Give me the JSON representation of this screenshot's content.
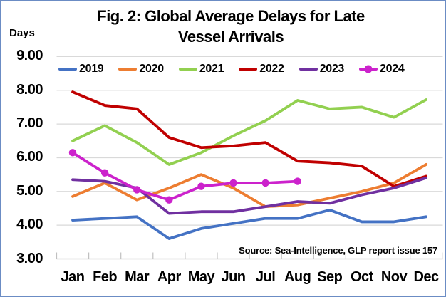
{
  "frame": {
    "border_color": "#6b8cc4",
    "background": "#ffffff"
  },
  "header": {
    "title_line1": "Fig. 2: Global Average Delays for Late",
    "title_line2": "Vessel Arrivals",
    "y_axis_unit_label": "Days"
  },
  "source_note": "Source: Sea-Intelligence, GLP report issue 157",
  "chart_data": {
    "type": "line",
    "title": "Fig. 2: Global Average Delays for Late Vessel Arrivals",
    "xlabel": "",
    "ylabel": "Days",
    "ylim": [
      3,
      9
    ],
    "y_tick_labels": [
      "9.00",
      "8.00",
      "7.00",
      "6.00",
      "5.00",
      "4.00",
      "3.00"
    ],
    "grid": "horizontal",
    "grid_color": "#d9d9d9",
    "axis_color": "#c0c0c0",
    "legend_position": "top",
    "categories": [
      "Jan",
      "Feb",
      "Mar",
      "Apr",
      "May",
      "Jun",
      "Jul",
      "Aug",
      "Sep",
      "Oct",
      "Nov",
      "Dec"
    ],
    "series": [
      {
        "name": "2019",
        "color": "#4472C4",
        "marker": false,
        "values": [
          4.15,
          4.2,
          4.25,
          3.6,
          3.9,
          4.05,
          4.2,
          4.2,
          4.45,
          4.1,
          4.1,
          4.25
        ]
      },
      {
        "name": "2020",
        "color": "#ED7D31",
        "marker": false,
        "values": [
          4.85,
          5.25,
          4.75,
          5.1,
          5.5,
          5.1,
          4.55,
          4.6,
          4.8,
          5.0,
          5.25,
          5.8
        ]
      },
      {
        "name": "2021",
        "color": "#92D050",
        "marker": false,
        "values": [
          6.5,
          6.95,
          6.45,
          5.8,
          6.15,
          6.65,
          7.1,
          7.7,
          7.45,
          7.5,
          7.2,
          7.72
        ]
      },
      {
        "name": "2022",
        "color": "#C00000",
        "marker": false,
        "values": [
          7.95,
          7.55,
          7.45,
          6.6,
          6.3,
          6.35,
          6.45,
          5.9,
          5.85,
          5.75,
          5.15,
          5.45
        ]
      },
      {
        "name": "2023",
        "color": "#7030A0",
        "marker": false,
        "values": [
          5.35,
          5.3,
          5.1,
          4.35,
          4.4,
          4.4,
          4.55,
          4.7,
          4.65,
          4.9,
          5.1,
          5.4
        ]
      },
      {
        "name": "2024",
        "color": "#CC22CC",
        "marker": true,
        "values": [
          6.15,
          5.55,
          5.05,
          4.75,
          5.15,
          5.25,
          5.25,
          5.3,
          null,
          null,
          null,
          null
        ]
      }
    ]
  }
}
